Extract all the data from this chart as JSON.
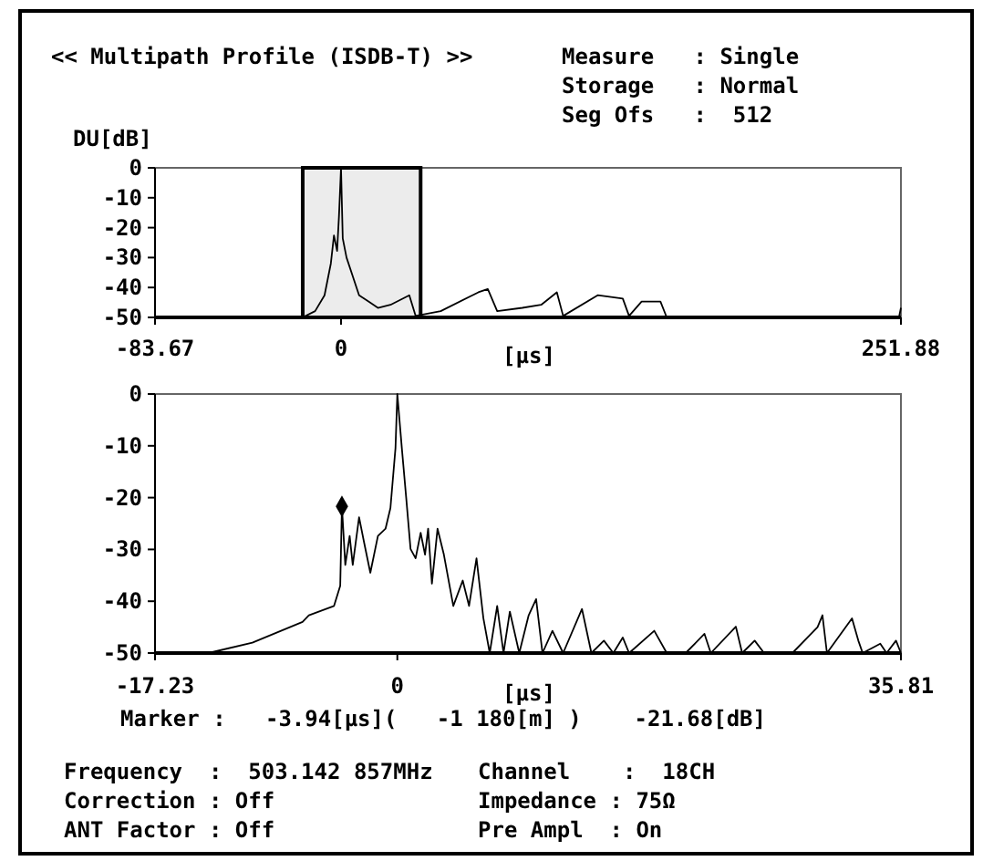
{
  "chart_data": [
    {
      "type": "line",
      "title": "<< Multipath Profile (ISDB-T) >>",
      "ylabel": "DU[dB]",
      "xlabel": "[μs]",
      "annotations": [
        "Measure   : Single",
        "Storage   : Normal",
        "Seg Ofs   :  512"
      ],
      "xlim": [
        -83.67,
        251.88
      ],
      "xticks": [
        -83.67,
        0,
        251.88
      ],
      "ylim": [
        -50,
        0
      ],
      "yticks": [
        0,
        -10,
        -20,
        -30,
        -40,
        -50
      ],
      "bands": [
        {
          "axis": "x",
          "from": -17.23,
          "to": 35.81,
          "color": "#ececec"
        }
      ],
      "series": [
        {
          "color": "#000000",
          "x": [
            -83.67,
            -17.29,
            -11.65,
            -7.41,
            -4.58,
            -3.17,
            -1.76,
            -0.92,
            0,
            0.78,
            2.48,
            5.3,
            8.13,
            12.36,
            16.6,
            22.25,
            30.72,
            33.55,
            44.85,
            61.8,
            66.03,
            70.27,
            81.57,
            90.04,
            97.1,
            99.93,
            115.46,
            126.76,
            129.58,
            135.23,
            143.7,
            146.52,
            163.47,
            251.0,
            251.88
          ],
          "values": [
            -50,
            -50,
            -47.9,
            -42.6,
            -32,
            -22.6,
            -27.8,
            -16.2,
            0,
            -23.6,
            -30,
            -36.3,
            -42.6,
            -44.7,
            -46.8,
            -45.8,
            -42.6,
            -49.5,
            -47.9,
            -41.6,
            -40.5,
            -47.9,
            -46.8,
            -45.8,
            -41.6,
            -49.5,
            -42.6,
            -43.7,
            -49.5,
            -44.7,
            -44.7,
            -50,
            -50,
            -50,
            -46.8
          ]
        }
      ]
    },
    {
      "type": "line",
      "xlabel": "[μs]",
      "annotations": [
        "Marker :   -3.94[μs](   -1 180[m] )    -21.68[dB]",
        "Frequency  :  503.142 857MHz",
        "Correction : Off",
        "ANT Factor : Off",
        "Channel    :  18CH",
        "Impedance : 75Ω",
        "Pre Ampl  : On"
      ],
      "xlim": [
        -17.23,
        35.81
      ],
      "xticks": [
        -17.23,
        0,
        35.81
      ],
      "ylim": [
        -50,
        0
      ],
      "yticks": [
        0,
        -10,
        -20,
        -30,
        -40,
        -50
      ],
      "series": [
        {
          "color": "#000000",
          "x": [
            -17.23,
            -13.43,
            -10.31,
            -6.74,
            -6.29,
            -4.5,
            -4.06,
            -3.94,
            -3.7,
            -3.39,
            -3.17,
            -2.72,
            -2.36,
            -1.92,
            -1.38,
            -0.84,
            -0.49,
            -0.13,
            0,
            0.32,
            0.63,
            0.94,
            1.3,
            1.66,
            1.97,
            2.19,
            2.46,
            2.86,
            3.31,
            3.98,
            4.65,
            5.1,
            5.63,
            6.12,
            6.57,
            7.1,
            7.55,
            8.0,
            8.67,
            9.34,
            9.87,
            10.32,
            11.03,
            11.79,
            13.13,
            13.8,
            14.69,
            15.36,
            16.03,
            16.48,
            18.27,
            19.16,
            20.5,
            21.84,
            22.29,
            24.07,
            24.52,
            25.41,
            26.08,
            27.2,
            28.09,
            29.88,
            30.23,
            30.55,
            32.33,
            32.78,
            33.09,
            34.34,
            34.79,
            35.46,
            35.81
          ],
          "values": [
            -50,
            -50,
            -48,
            -44,
            -42.7,
            -40.9,
            -37,
            -21.7,
            -33,
            -27.4,
            -33,
            -23.8,
            -28.7,
            -34.5,
            -27.4,
            -26,
            -22,
            -10.4,
            0,
            -10.4,
            -20,
            -29.9,
            -31.7,
            -26.8,
            -31,
            -26,
            -36.6,
            -26,
            -31,
            -40.9,
            -36,
            -40.9,
            -31.7,
            -43.3,
            -50,
            -40.9,
            -50,
            -42,
            -50,
            -42.7,
            -39.6,
            -50,
            -45.7,
            -50,
            -41.5,
            -50,
            -47.6,
            -50,
            -47,
            -50,
            -45.7,
            -50,
            -50,
            -46.3,
            -50,
            -44.9,
            -50,
            -47.6,
            -50,
            -50,
            -50,
            -45,
            -42.7,
            -50,
            -43.3,
            -47.6,
            -50,
            -48.2,
            -50,
            -47.6,
            -50
          ]
        },
        {
          "type": "scatter",
          "marker": "diamond",
          "color": "#000000",
          "x": [
            -3.94
          ],
          "values": [
            -21.68
          ]
        }
      ]
    }
  ]
}
